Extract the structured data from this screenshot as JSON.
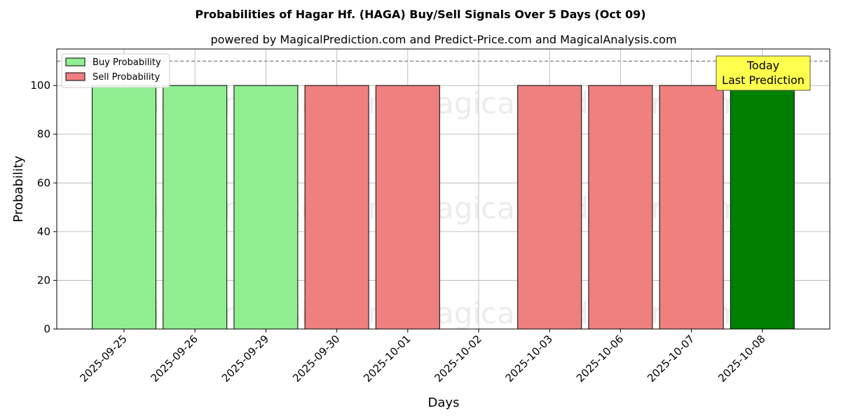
{
  "chart_data": {
    "type": "bar",
    "title": "Probabilities of Hagar Hf. (HAGA) Buy/Sell Signals Over 5 Days (Oct 09)",
    "subtitle": "powered by MagicalPrediction.com and Predict-Price.com and MagicalAnalysis.com",
    "xlabel": "Days",
    "ylabel": "Probability",
    "ylim": [
      0,
      115
    ],
    "yticks": [
      0,
      20,
      40,
      60,
      80,
      100
    ],
    "categories": [
      "2025-09-25",
      "2025-09-26",
      "2025-09-29",
      "2025-09-30",
      "2025-10-01",
      "2025-10-02",
      "2025-10-03",
      "2025-10-06",
      "2025-10-07",
      "2025-10-08"
    ],
    "bars": [
      {
        "category": "2025-09-25",
        "value": 100,
        "signal": "buy"
      },
      {
        "category": "2025-09-26",
        "value": 100,
        "signal": "buy"
      },
      {
        "category": "2025-09-29",
        "value": 100,
        "signal": "buy"
      },
      {
        "category": "2025-09-30",
        "value": 100,
        "signal": "sell"
      },
      {
        "category": "2025-10-01",
        "value": 100,
        "signal": "sell"
      },
      {
        "category": "2025-10-02",
        "value": 0,
        "signal": "none"
      },
      {
        "category": "2025-10-03",
        "value": 100,
        "signal": "sell"
      },
      {
        "category": "2025-10-06",
        "value": 100,
        "signal": "sell"
      },
      {
        "category": "2025-10-07",
        "value": 100,
        "signal": "sell"
      },
      {
        "category": "2025-10-08",
        "value": 100,
        "signal": "today"
      }
    ],
    "series": [
      {
        "name": "Buy Probability",
        "color": "#90ee90"
      },
      {
        "name": "Sell Probability",
        "color": "#f08080"
      }
    ],
    "today_color": "#008000",
    "reference_line": 110,
    "annotation": {
      "line1": "Today",
      "line2": "Last Prediction",
      "color": "#ffff4d"
    },
    "grid": true,
    "legend_position": "top-left",
    "watermarks": [
      "MagicalAnalysis.com",
      "MagicalPrediction.com"
    ]
  }
}
